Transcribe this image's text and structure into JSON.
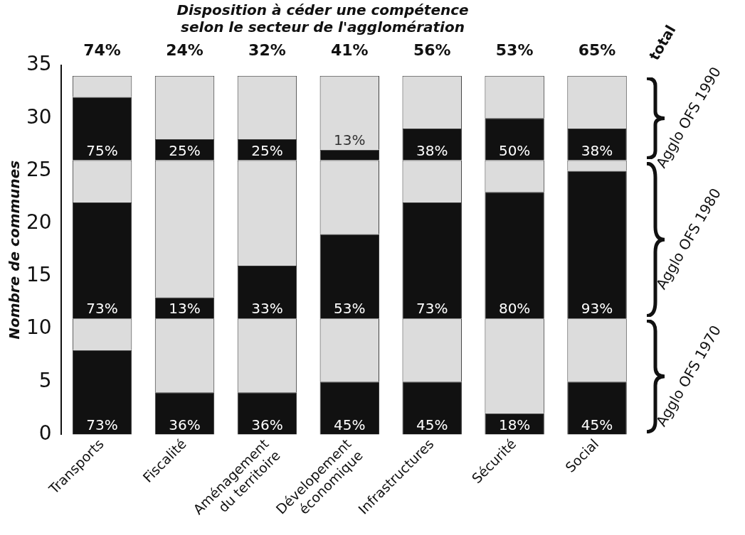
{
  "chart_data": {
    "type": "bar",
    "stacked": true,
    "title": "Disposition à céder une compétence\nselon le secteur de l'agglomération",
    "ylabel": "Nombre de communes",
    "categories": [
      "Transports",
      "Fiscalité",
      "Aménagement du territoire",
      "Dévelopement économique",
      "Infrastructures",
      "Sécurité",
      "Social"
    ],
    "series": [
      {
        "color": "#111111",
        "values": [
          8,
          4,
          4,
          5,
          5,
          2,
          5
        ]
      },
      {
        "color": "#dcdcdc",
        "values": [
          3,
          7,
          7,
          6,
          6,
          9,
          6
        ]
      },
      {
        "color": "#111111",
        "values": [
          11,
          2,
          5,
          8,
          11,
          12,
          14
        ]
      },
      {
        "color": "#dcdcdc",
        "values": [
          4,
          13,
          10,
          7,
          4,
          3,
          1
        ]
      },
      {
        "color": "#111111",
        "values": [
          6,
          2,
          2,
          1,
          3,
          4,
          3
        ]
      },
      {
        "color": "#dcdcdc",
        "values": [
          2,
          6,
          6,
          7,
          5,
          4,
          5
        ]
      }
    ],
    "annotations": [
      "total",
      "Agglo OFS 1970",
      "Agglo OFS 1980",
      "Agglo OFS 1990",
      {
        "text": "74%",
        "x": "Transports",
        "y": 34
      },
      {
        "text": "24%",
        "x": "Fiscalité",
        "y": 34
      },
      {
        "text": "32%",
        "x": "Aménagement du territoire",
        "y": 34
      },
      {
        "text": "41%",
        "x": "Dévelopement économique",
        "y": 34
      },
      {
        "text": "56%",
        "x": "Infrastructures",
        "y": 34
      },
      {
        "text": "53%",
        "x": "Sécurité",
        "y": 34
      },
      {
        "text": "65%",
        "x": "Social",
        "y": 34
      },
      {
        "text": "73%",
        "x": "Transports",
        "y": 0
      },
      {
        "text": "36%",
        "x": "Fiscalité",
        "y": 0
      },
      {
        "text": "36%",
        "x": "Aménagement du territoire",
        "y": 0
      },
      {
        "text": "45%",
        "x": "Dévelopement économique",
        "y": 0
      },
      {
        "text": "45%",
        "x": "Infrastructures",
        "y": 0
      },
      {
        "text": "18%",
        "x": "Sécurité",
        "y": 0
      },
      {
        "text": "45%",
        "x": "Social",
        "y": 0
      },
      {
        "text": "73%",
        "x": "Transports",
        "y": 11
      },
      {
        "text": "13%",
        "x": "Fiscalité",
        "y": 11
      },
      {
        "text": "33%",
        "x": "Aménagement du territoire",
        "y": 11
      },
      {
        "text": "53%",
        "x": "Dévelopement économique",
        "y": 11
      },
      {
        "text": "73%",
        "x": "Infrastructures",
        "y": 11
      },
      {
        "text": "80%",
        "x": "Sécurité",
        "y": 11
      },
      {
        "text": "93%",
        "x": "Social",
        "y": 11
      },
      {
        "text": "75%",
        "x": "Transports",
        "y": 26
      },
      {
        "text": "25%",
        "x": "Fiscalité",
        "y": 26
      },
      {
        "text": "25%",
        "x": "Aménagement du territoire",
        "y": 26
      },
      {
        "text": "13%",
        "x": "Dévelopement économique",
        "y": 27
      },
      {
        "text": "38%",
        "x": "Infrastructures",
        "y": 26
      },
      {
        "text": "50%",
        "x": "Sécurité",
        "y": 26
      },
      {
        "text": "38%",
        "x": "Social",
        "y": 26
      }
    ],
    "ylim": [
      0,
      35
    ],
    "yticks": [
      0,
      5,
      10,
      15,
      20,
      25,
      30,
      35
    ],
    "grid": false,
    "legend": false
  }
}
